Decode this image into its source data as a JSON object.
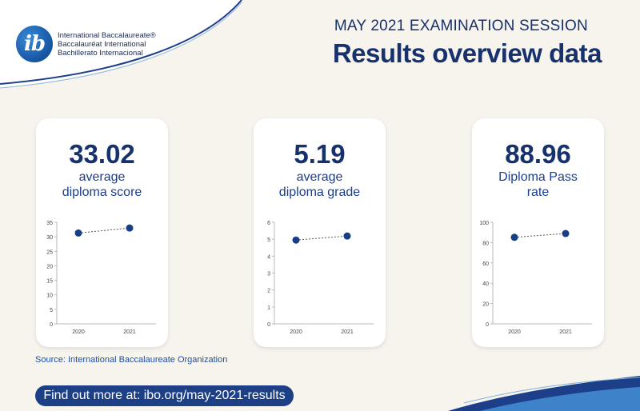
{
  "header": {
    "subtitle": "MAY 2021 EXAMINATION SESSION",
    "title": "Results overview data"
  },
  "logo": {
    "glyph": "ib",
    "lines": [
      "International Baccalaureate®",
      "Baccalauréat International",
      "Bachillerato Internacional"
    ]
  },
  "colors": {
    "navy": "#16316b",
    "accent": "#1b5fae",
    "marker": "#173f86"
  },
  "cards": [
    {
      "value": "33.02",
      "label_line1": "average",
      "label_line2": "diploma score"
    },
    {
      "value": "5.19",
      "label_line1": "average",
      "label_line2": "diploma grade"
    },
    {
      "value": "88.96",
      "label_line1": "Diploma Pass",
      "label_line2": "rate"
    }
  ],
  "chart_data": [
    {
      "type": "line",
      "title": "average diploma score",
      "categories": [
        "2020",
        "2021"
      ],
      "values": [
        31.3,
        33.02
      ],
      "ylim": [
        0,
        35
      ],
      "yticks": [
        0,
        5,
        10,
        15,
        20,
        25,
        30,
        35
      ]
    },
    {
      "type": "line",
      "title": "average diploma grade",
      "categories": [
        "2020",
        "2021"
      ],
      "values": [
        4.95,
        5.19
      ],
      "ylim": [
        0,
        6
      ],
      "yticks": [
        0,
        1,
        2,
        3,
        4,
        5,
        6
      ]
    },
    {
      "type": "line",
      "title": "Diploma Pass rate",
      "categories": [
        "2020",
        "2021"
      ],
      "values": [
        85.2,
        88.96
      ],
      "ylim": [
        0,
        100
      ],
      "yticks": [
        0,
        20,
        40,
        60,
        80,
        100
      ]
    }
  ],
  "footer": {
    "source": "Source: International Baccalaureate Organization",
    "cta": "Find out more at: ibo.org/may-2021-results"
  }
}
